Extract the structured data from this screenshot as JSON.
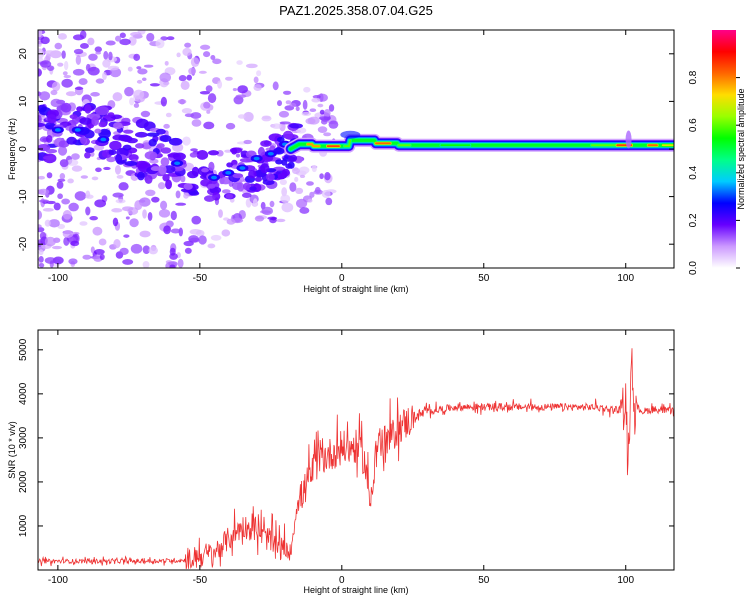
{
  "title": "PAZ1.2025.358.07.04.G25",
  "chart_data": [
    {
      "type": "heatmap",
      "name": "spectrogram",
      "xlabel": "Height of straight line (km)",
      "ylabel": "Frequency (Hz)",
      "xlim": [
        -107,
        117
      ],
      "ylim": [
        -25,
        25
      ],
      "xticks": [
        -100,
        -50,
        0,
        50,
        100
      ],
      "yticks": [
        -20,
        -10,
        0,
        10,
        20
      ],
      "colorbar": {
        "label": "Normalized spectral amplitude",
        "range": [
          0.0,
          1.0
        ],
        "ticks": [
          0.0,
          0.2,
          0.4,
          0.6,
          0.8
        ],
        "tick_labels": [
          "0.0",
          "0.2",
          "0.4",
          "0.6",
          "0.8"
        ],
        "colormap": [
          "#ffffff",
          "#cc99ff",
          "#6600ff",
          "#0000ff",
          "#00ccff",
          "#00ff88",
          "#00ff00",
          "#99ff00",
          "#ffdd00",
          "#ff6600",
          "#ff0000",
          "#ff0088"
        ]
      },
      "description_points": [
        {
          "x": -40,
          "y": -6,
          "value": 0.3
        },
        {
          "x": -10,
          "y": 1,
          "value": 0.5
        },
        {
          "x": 0,
          "y": 0,
          "value": 0.8
        },
        {
          "x": 50,
          "y": 0,
          "value": 0.5
        },
        {
          "x": 100,
          "y": 1,
          "value": 0.8
        }
      ]
    },
    {
      "type": "line",
      "name": "snr",
      "xlabel": "Height of straight line (km)",
      "ylabel": "SNR (10 * v/v)",
      "xlim": [
        -107,
        117
      ],
      "ylim": [
        0,
        5450
      ],
      "xticks": [
        -100,
        -50,
        0,
        50,
        100
      ],
      "yticks": [
        1000,
        2000,
        3000,
        4000,
        5000
      ],
      "color": "#ee3333",
      "series": [
        {
          "name": "SNR",
          "x": [
            -107,
            -90,
            -70,
            -55,
            -45,
            -40,
            -35,
            -30,
            -25,
            -22,
            -20,
            -18,
            -16,
            -14,
            -12,
            -10,
            -8,
            -5,
            -2,
            0,
            2,
            5,
            8,
            10,
            12,
            15,
            18,
            20,
            23,
            25,
            30,
            40,
            50,
            60,
            70,
            80,
            90,
            95,
            98,
            100,
            101,
            102,
            103,
            104,
            106,
            110,
            117
          ],
          "y": [
            200,
            200,
            200,
            220,
            400,
            700,
            1000,
            900,
            650,
            500,
            450,
            400,
            1400,
            1700,
            2000,
            2300,
            2500,
            2600,
            2700,
            2800,
            2750,
            2800,
            2500,
            1500,
            2800,
            2900,
            3050,
            3250,
            3350,
            3450,
            3600,
            3700,
            3700,
            3700,
            3700,
            3700,
            3700,
            3650,
            3650,
            3900,
            2300,
            5100,
            3500,
            3700,
            3600,
            3650,
            3600
          ]
        }
      ]
    }
  ]
}
